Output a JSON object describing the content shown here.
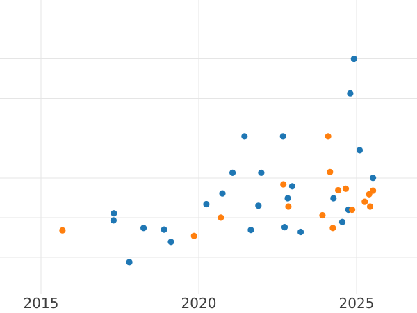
{
  "chart_data": {
    "type": "scatter",
    "title": "",
    "xlabel": "",
    "ylabel": "",
    "grid": {
      "show": true,
      "color": "#e5e5e5"
    },
    "legend": {
      "show": false
    },
    "tick_label_color": "#3d3d3d",
    "x_axis": {
      "tick_labels": [
        "2015",
        "2020",
        "2025"
      ],
      "tick_values": [
        2015,
        2020,
        2025
      ],
      "range": [
        2013.7,
        2026.917
      ]
    },
    "y_axis": {
      "tick_labels": [],
      "gridline_values": [
        0,
        1,
        2,
        3,
        4,
        5,
        6
      ],
      "range": [
        -1.4,
        6.48
      ]
    },
    "series": [
      {
        "name": "series-blue",
        "color": "#1f77b4",
        "points": [
          [
            2017.3,
            0.93
          ],
          [
            2017.31,
            1.11
          ],
          [
            2017.8,
            -0.12
          ],
          [
            2018.25,
            0.74
          ],
          [
            2018.9,
            0.7
          ],
          [
            2019.12,
            0.39
          ],
          [
            2020.24,
            1.34
          ],
          [
            2020.75,
            1.61
          ],
          [
            2021.07,
            2.13
          ],
          [
            2021.45,
            3.05
          ],
          [
            2021.65,
            0.69
          ],
          [
            2021.89,
            1.3
          ],
          [
            2021.98,
            2.13
          ],
          [
            2022.67,
            3.05
          ],
          [
            2022.72,
            0.76
          ],
          [
            2022.82,
            1.49
          ],
          [
            2022.96,
            1.79
          ],
          [
            2023.23,
            0.64
          ],
          [
            2024.27,
            1.49
          ],
          [
            2024.55,
            0.89
          ],
          [
            2024.74,
            1.2
          ],
          [
            2024.8,
            4.13
          ],
          [
            2024.92,
            5.0
          ],
          [
            2025.1,
            2.7
          ],
          [
            2025.52,
            2.0
          ]
        ]
      },
      {
        "name": "series-orange",
        "color": "#ff7f0e",
        "points": [
          [
            2015.68,
            0.68
          ],
          [
            2019.85,
            0.54
          ],
          [
            2020.7,
            1.0
          ],
          [
            2022.68,
            1.84
          ],
          [
            2022.84,
            1.28
          ],
          [
            2023.92,
            1.06
          ],
          [
            2024.1,
            3.05
          ],
          [
            2024.16,
            2.15
          ],
          [
            2024.25,
            0.74
          ],
          [
            2024.42,
            1.69
          ],
          [
            2024.66,
            1.73
          ],
          [
            2024.86,
            1.2
          ],
          [
            2025.26,
            1.4
          ],
          [
            2025.4,
            1.59
          ],
          [
            2025.43,
            1.28
          ],
          [
            2025.52,
            1.68
          ]
        ]
      }
    ]
  }
}
